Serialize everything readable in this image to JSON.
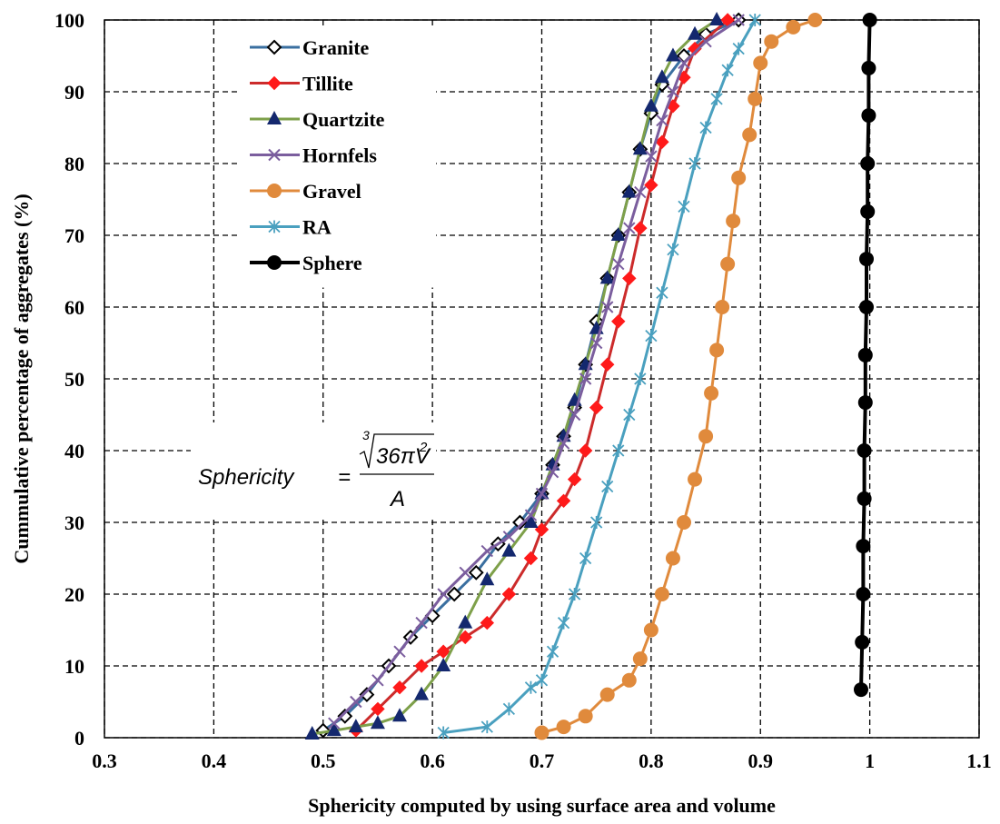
{
  "chart_data": {
    "type": "line",
    "xlabel": "Sphericity computed by using surface area and volume",
    "ylabel": "Cummulative percentage of aggregates (%)",
    "xlim": [
      0.3,
      1.1
    ],
    "ylim": [
      0,
      100
    ],
    "xticks": [
      "0.3",
      "0.4",
      "0.5",
      "0.6",
      "0.7",
      "0.8",
      "0.9",
      "1",
      "1.1"
    ],
    "yticks": [
      "0",
      "10",
      "20",
      "30",
      "40",
      "50",
      "60",
      "70",
      "80",
      "90",
      "100"
    ],
    "grid": "dashed",
    "legend_position": "top-left",
    "annotation": {
      "lhs": "Sphericity",
      "eq": "=",
      "root_index": "3",
      "radicand": "36πV",
      "exponent": "2",
      "denominator": "A"
    },
    "series": [
      {
        "name": "Granite",
        "color": "#3a6fa0",
        "marker": "diamond-open",
        "points": [
          [
            0.5,
            1
          ],
          [
            0.52,
            3
          ],
          [
            0.54,
            6
          ],
          [
            0.56,
            10
          ],
          [
            0.58,
            14
          ],
          [
            0.6,
            17
          ],
          [
            0.62,
            20
          ],
          [
            0.64,
            23
          ],
          [
            0.66,
            27
          ],
          [
            0.68,
            30
          ],
          [
            0.7,
            34
          ],
          [
            0.71,
            38
          ],
          [
            0.72,
            42
          ],
          [
            0.73,
            46
          ],
          [
            0.74,
            52
          ],
          [
            0.75,
            58
          ],
          [
            0.76,
            64
          ],
          [
            0.77,
            70
          ],
          [
            0.78,
            76
          ],
          [
            0.79,
            82
          ],
          [
            0.8,
            87
          ],
          [
            0.81,
            91
          ],
          [
            0.83,
            95
          ],
          [
            0.85,
            98
          ],
          [
            0.88,
            100
          ]
        ]
      },
      {
        "name": "Tillite",
        "color": "#cc2b2b",
        "marker": "diamond-filled",
        "points": [
          [
            0.53,
            1
          ],
          [
            0.55,
            4
          ],
          [
            0.57,
            7
          ],
          [
            0.59,
            10
          ],
          [
            0.61,
            12
          ],
          [
            0.63,
            14
          ],
          [
            0.65,
            16
          ],
          [
            0.67,
            20
          ],
          [
            0.69,
            25
          ],
          [
            0.7,
            29
          ],
          [
            0.72,
            33
          ],
          [
            0.73,
            36
          ],
          [
            0.74,
            40
          ],
          [
            0.75,
            46
          ],
          [
            0.76,
            52
          ],
          [
            0.77,
            58
          ],
          [
            0.78,
            64
          ],
          [
            0.79,
            71
          ],
          [
            0.8,
            77
          ],
          [
            0.81,
            83
          ],
          [
            0.82,
            88
          ],
          [
            0.83,
            92
          ],
          [
            0.84,
            96
          ],
          [
            0.87,
            100
          ]
        ]
      },
      {
        "name": "Quartzite",
        "color": "#7ea04a",
        "marker": "triangle",
        "marker_color": "#14286e",
        "points": [
          [
            0.49,
            0.5
          ],
          [
            0.51,
            1
          ],
          [
            0.53,
            1.5
          ],
          [
            0.55,
            2
          ],
          [
            0.57,
            3
          ],
          [
            0.59,
            6
          ],
          [
            0.61,
            10
          ],
          [
            0.63,
            16
          ],
          [
            0.65,
            22
          ],
          [
            0.67,
            26
          ],
          [
            0.69,
            30
          ],
          [
            0.7,
            34
          ],
          [
            0.71,
            38
          ],
          [
            0.72,
            42
          ],
          [
            0.73,
            47
          ],
          [
            0.74,
            52
          ],
          [
            0.75,
            57
          ],
          [
            0.76,
            64
          ],
          [
            0.77,
            70
          ],
          [
            0.78,
            76
          ],
          [
            0.79,
            82
          ],
          [
            0.8,
            88
          ],
          [
            0.81,
            92
          ],
          [
            0.82,
            95
          ],
          [
            0.84,
            98
          ],
          [
            0.86,
            100
          ]
        ]
      },
      {
        "name": "Hornfels",
        "color": "#7b5e9e",
        "marker": "x",
        "points": [
          [
            0.51,
            2
          ],
          [
            0.53,
            5
          ],
          [
            0.55,
            8
          ],
          [
            0.57,
            12
          ],
          [
            0.59,
            16
          ],
          [
            0.61,
            20
          ],
          [
            0.63,
            23
          ],
          [
            0.65,
            26
          ],
          [
            0.67,
            28
          ],
          [
            0.69,
            31
          ],
          [
            0.7,
            34
          ],
          [
            0.71,
            37
          ],
          [
            0.72,
            41
          ],
          [
            0.73,
            45
          ],
          [
            0.74,
            50
          ],
          [
            0.75,
            55
          ],
          [
            0.76,
            60
          ],
          [
            0.77,
            66
          ],
          [
            0.78,
            71
          ],
          [
            0.79,
            76
          ],
          [
            0.8,
            81
          ],
          [
            0.81,
            86
          ],
          [
            0.82,
            90
          ],
          [
            0.83,
            94
          ],
          [
            0.85,
            97
          ],
          [
            0.88,
            100
          ]
        ]
      },
      {
        "name": "Gravel",
        "color": "#e08a3c",
        "marker": "circle",
        "points": [
          [
            0.7,
            0.7
          ],
          [
            0.72,
            1.5
          ],
          [
            0.74,
            3
          ],
          [
            0.76,
            6
          ],
          [
            0.78,
            8
          ],
          [
            0.79,
            11
          ],
          [
            0.8,
            15
          ],
          [
            0.81,
            20
          ],
          [
            0.82,
            25
          ],
          [
            0.83,
            30
          ],
          [
            0.84,
            36
          ],
          [
            0.85,
            42
          ],
          [
            0.855,
            48
          ],
          [
            0.86,
            54
          ],
          [
            0.865,
            60
          ],
          [
            0.87,
            66
          ],
          [
            0.875,
            72
          ],
          [
            0.88,
            78
          ],
          [
            0.89,
            84
          ],
          [
            0.895,
            89
          ],
          [
            0.9,
            94
          ],
          [
            0.91,
            97
          ],
          [
            0.93,
            99
          ],
          [
            0.95,
            100
          ]
        ]
      },
      {
        "name": "RA",
        "color": "#4aa0bf",
        "marker": "asterisk",
        "points": [
          [
            0.61,
            0.7
          ],
          [
            0.65,
            1.5
          ],
          [
            0.67,
            4
          ],
          [
            0.69,
            7
          ],
          [
            0.7,
            8
          ],
          [
            0.71,
            12
          ],
          [
            0.72,
            16
          ],
          [
            0.73,
            20
          ],
          [
            0.74,
            25
          ],
          [
            0.75,
            30
          ],
          [
            0.76,
            35
          ],
          [
            0.77,
            40
          ],
          [
            0.78,
            45
          ],
          [
            0.79,
            50
          ],
          [
            0.8,
            56
          ],
          [
            0.81,
            62
          ],
          [
            0.82,
            68
          ],
          [
            0.83,
            74
          ],
          [
            0.84,
            80
          ],
          [
            0.85,
            85
          ],
          [
            0.86,
            89
          ],
          [
            0.87,
            93
          ],
          [
            0.88,
            96
          ],
          [
            0.895,
            100
          ]
        ]
      },
      {
        "name": "Sphere",
        "color": "#000000",
        "marker": "circle",
        "points": [
          [
            0.992,
            6.7
          ],
          [
            0.993,
            13.3
          ],
          [
            0.994,
            20
          ],
          [
            0.994,
            26.7
          ],
          [
            0.995,
            33.3
          ],
          [
            0.995,
            40
          ],
          [
            0.996,
            46.7
          ],
          [
            0.996,
            53.3
          ],
          [
            0.997,
            60
          ],
          [
            0.997,
            66.7
          ],
          [
            0.998,
            73.3
          ],
          [
            0.998,
            80
          ],
          [
            0.999,
            86.7
          ],
          [
            0.999,
            93.3
          ],
          [
            1.0,
            100
          ]
        ]
      }
    ]
  }
}
